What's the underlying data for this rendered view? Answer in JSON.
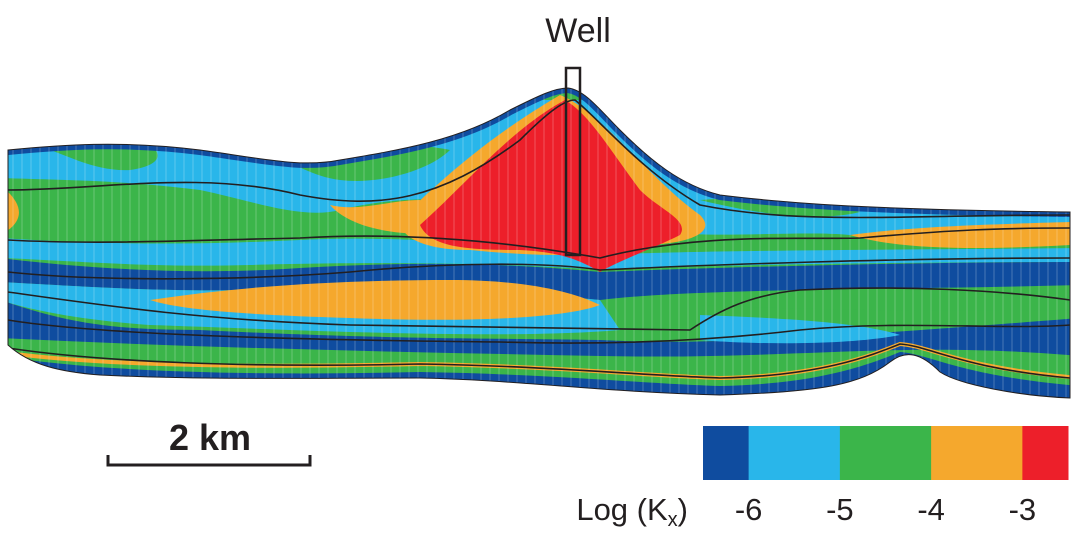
{
  "well_label": "Well",
  "scale_bar": {
    "label": "2 km"
  },
  "colorbar": {
    "title": "Log (K",
    "title_subscript": "x",
    "title_end": ")",
    "range": [
      -6.5,
      -2.5
    ],
    "ticks": [
      -6,
      -5,
      -4,
      -3
    ],
    "colors": [
      "#0f4c9f",
      "#29b6ea",
      "#3bb54a",
      "#f5a82d",
      "#ed1f2a"
    ]
  }
}
